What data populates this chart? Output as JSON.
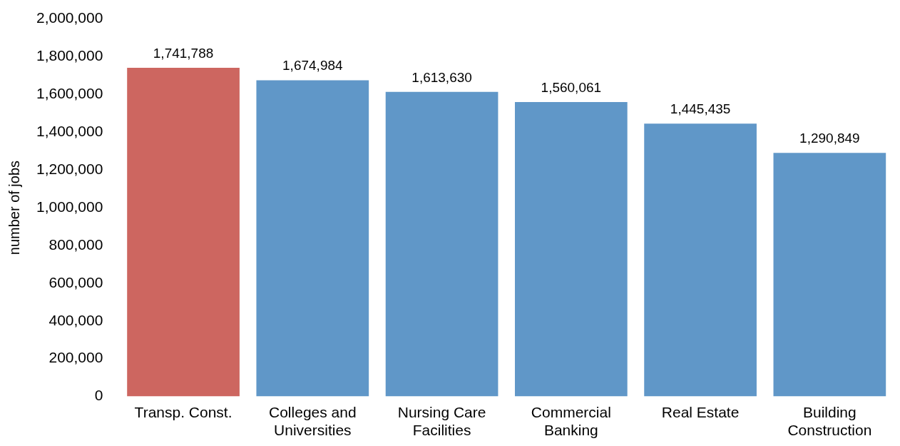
{
  "chart_data": {
    "type": "bar",
    "ylabel": "number of jobs",
    "categories": [
      "Transp. Const.",
      "Colleges and Universities",
      "Nursing Care Facilities",
      "Commercial Banking",
      "Real Estate",
      "Building Construction"
    ],
    "values": [
      1741788,
      1674984,
      1613630,
      1560061,
      1445435,
      1290849
    ],
    "value_labels": [
      "1,741,788",
      "1,674,984",
      "1,613,630",
      "1,560,061",
      "1,445,435",
      "1,290,849"
    ],
    "colors": [
      "#cd6660",
      "#6097c8",
      "#6097c8",
      "#6097c8",
      "#6097c8",
      "#6097c8"
    ],
    "ylim": [
      0,
      2000000
    ],
    "yticks": [
      0,
      {
        "value": 200000,
        "label": "200,000"
      },
      {
        "value": 400000,
        "label": "400,000"
      },
      {
        "value": 600000,
        "label": "600,000"
      },
      {
        "value": 800000,
        "label": "800,000"
      },
      {
        "value": 1000000,
        "label": "1,000,000"
      },
      {
        "value": 1200000,
        "label": "1,200,000"
      },
      {
        "value": 1400000,
        "label": "1,400,000"
      },
      {
        "value": 1600000,
        "label": "1,600,000"
      },
      {
        "value": 1800000,
        "label": "1,800,000"
      },
      {
        "value": 2000000,
        "label": "2,000,000"
      }
    ],
    "grid": false,
    "legend": false
  }
}
